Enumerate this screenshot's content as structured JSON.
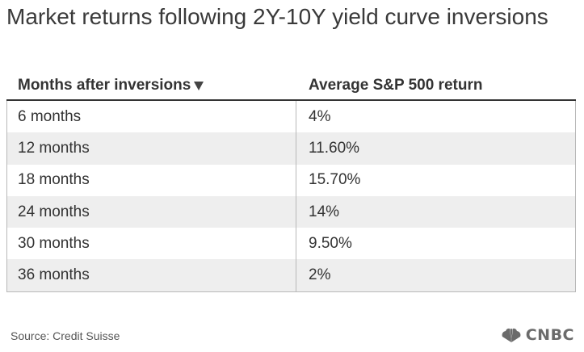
{
  "title": "Market returns following 2Y-10Y yield curve inversions",
  "table": {
    "headers": [
      "Months after inversions",
      "Average S&P 500 return"
    ],
    "rows": [
      [
        "6 months",
        "4%"
      ],
      [
        "12 months",
        "11.60%"
      ],
      [
        "18 months",
        "15.70%"
      ],
      [
        "24 months",
        "14%"
      ],
      [
        "30 months",
        "9.50%"
      ],
      [
        "36 months",
        "2%"
      ]
    ]
  },
  "source": "Source: Credit Suisse",
  "brand": {
    "name": "CNBC",
    "icon": "peacock-icon",
    "color": "#6b6b6b"
  },
  "colors": {
    "row_alt": "#eeeeee",
    "header_rule": "#333333",
    "grid": "#b8b8b8"
  }
}
